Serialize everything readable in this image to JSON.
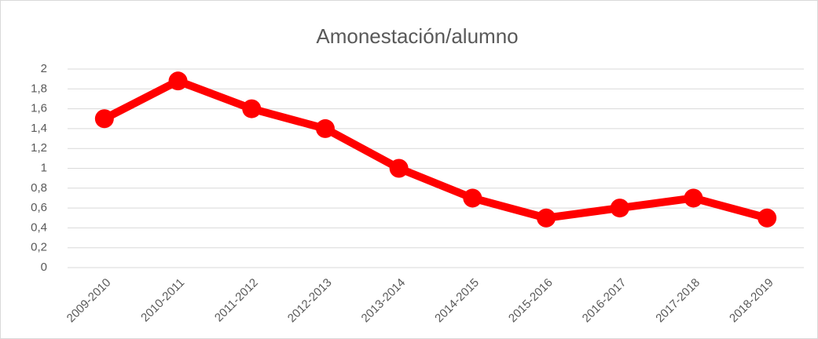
{
  "chart_data": {
    "type": "line",
    "title": "Amonestación/alumno",
    "categories": [
      "2009-2010",
      "2010-2011",
      "2011-2012",
      "2012-2013",
      "2013-2014",
      "2014-2015",
      "2015-2016",
      "2016-2017",
      "2017-2018",
      "2018-2019"
    ],
    "series": [
      {
        "name": "Amonestación/alumno",
        "color": "#ff0000",
        "values": [
          1.5,
          1.88,
          1.6,
          1.4,
          1.0,
          0.7,
          0.5,
          0.6,
          0.7,
          0.5
        ]
      }
    ],
    "ylim": [
      0,
      2
    ],
    "yticks": [
      0,
      {
        "value": 0.2,
        "label": "0,2"
      },
      {
        "value": 0.4,
        "label": "0,4"
      },
      {
        "value": 0.6,
        "label": "0,6"
      },
      {
        "value": 0.8,
        "label": "0,8"
      },
      1,
      {
        "value": 1.2,
        "label": "1,2"
      },
      {
        "value": 1.4,
        "label": "1,4"
      },
      {
        "value": 1.6,
        "label": "1,6"
      },
      {
        "value": 1.8,
        "label": "1,8"
      },
      2
    ],
    "grid": true
  }
}
